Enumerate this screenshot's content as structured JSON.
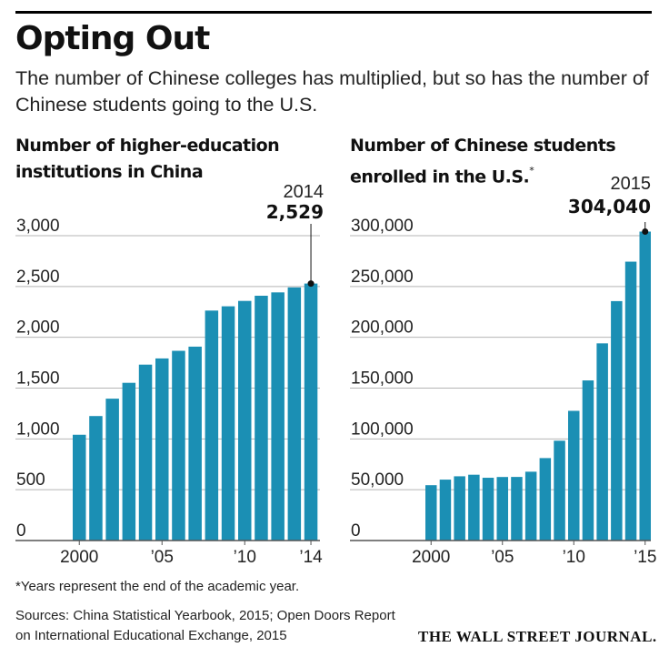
{
  "header": {
    "title": "Opting Out",
    "subtitle": "The number of Chinese colleges has multiplied, but so has the number of Chinese students going to the U.S."
  },
  "colors": {
    "bar": "#1b8fb4",
    "grid": "#b5b5b5",
    "text": "#222222"
  },
  "chart_data": [
    {
      "type": "bar",
      "title": "Number of higher-education institutions in China",
      "x": [
        2000,
        2001,
        2002,
        2003,
        2004,
        2005,
        2006,
        2007,
        2008,
        2009,
        2010,
        2011,
        2012,
        2013,
        2014
      ],
      "values": [
        1041,
        1225,
        1396,
        1552,
        1731,
        1792,
        1867,
        1908,
        2263,
        2305,
        2358,
        2409,
        2442,
        2491,
        2529
      ],
      "ylim": [
        0,
        3000
      ],
      "yticks": [
        0,
        500,
        1000,
        1500,
        2000,
        2500,
        3000
      ],
      "ytick_labels": [
        "0",
        "500",
        "1,000",
        "1,500",
        "2,000",
        "2,500",
        "3,000"
      ],
      "xtick_labels": [
        {
          "x": 2000,
          "label": "2000"
        },
        {
          "x": 2005,
          "label": "'05"
        },
        {
          "x": 2010,
          "label": "'10"
        },
        {
          "x": 2014,
          "label": "'14"
        }
      ],
      "annotation": {
        "x": 2014,
        "year_label": "2014",
        "value_label": "2,529"
      },
      "grid": true
    },
    {
      "type": "bar",
      "title": "Number of Chinese students enrolled in the U.S.",
      "title_marker": "*",
      "x": [
        2000,
        2001,
        2002,
        2003,
        2004,
        2005,
        2006,
        2007,
        2008,
        2009,
        2010,
        2011,
        2012,
        2013,
        2014,
        2015
      ],
      "values": [
        54466,
        59939,
        63211,
        64757,
        61765,
        62523,
        62582,
        67723,
        81127,
        98235,
        127628,
        157558,
        194029,
        235597,
        274439,
        304040
      ],
      "ylim": [
        0,
        300000
      ],
      "yticks": [
        0,
        50000,
        100000,
        150000,
        200000,
        250000,
        300000
      ],
      "ytick_labels": [
        "0",
        "50,000",
        "100,000",
        "150,000",
        "200,000",
        "250,000",
        "300,000"
      ],
      "xtick_labels": [
        {
          "x": 2000,
          "label": "2000"
        },
        {
          "x": 2005,
          "label": "'05"
        },
        {
          "x": 2010,
          "label": "'10"
        },
        {
          "x": 2015,
          "label": "'15"
        }
      ],
      "annotation": {
        "x": 2015,
        "year_label": "2015",
        "value_label": "304,040"
      },
      "grid": true
    }
  ],
  "footer": {
    "footnote": "*Years represent the end of the academic year.",
    "sources": "Sources: China Statistical Yearbook, 2015; Open Doors Report on International Educational Exchange, 2015",
    "logo": "THE WALL STREET JOURNAL."
  }
}
